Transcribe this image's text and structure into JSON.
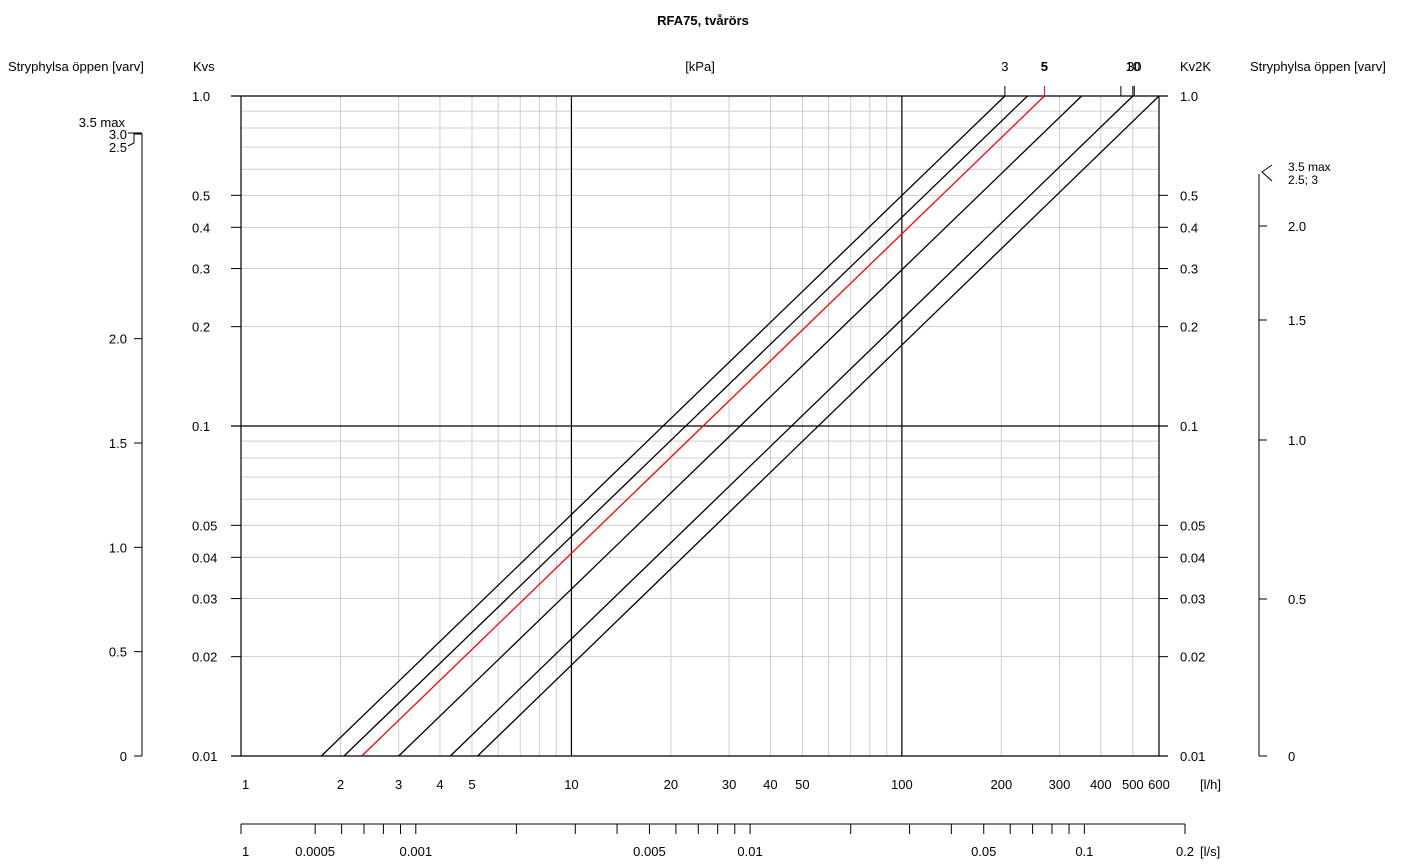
{
  "chart_data": {
    "type": "line",
    "title": "RFA75, tvårörs",
    "colors": {
      "highlight": "#ff0000",
      "line": "#000000",
      "minor_grid": "#cfcfcf",
      "major_grid": "#000000"
    },
    "grid": true,
    "x_scale": "log",
    "y_scale": "log",
    "xlim": [
      1,
      600
    ],
    "ylim": [
      0.01,
      1.0
    ],
    "x_unit_label": "[l/h]",
    "x_ticks": [
      "1",
      "2",
      "3",
      "4",
      "5",
      "10",
      "20",
      "30",
      "40",
      "50",
      "100",
      "200",
      "300",
      "400",
      "500",
      "600"
    ],
    "x2_unit_label": "[l/s]",
    "x2_ticks": [
      "1",
      "0.0005",
      "0.001",
      "0.005",
      "0.01",
      "0.05",
      "0.1",
      "0.2"
    ],
    "left_axis_label": "Kvs",
    "center_label": "[kPa]",
    "right_axis_label": "Kv2K",
    "y_ticks": [
      "0.01",
      "0.02",
      "0.03",
      "0.04",
      "0.05",
      "0.1",
      "0.2",
      "0.3",
      "0.4",
      "0.5",
      "1.0"
    ],
    "top_series_labels": [
      "3",
      "5",
      "10",
      "30"
    ],
    "top_series_bold": "5",
    "left_scale": {
      "label": "Stryphylsa öppen [varv]",
      "ticks": [
        "0",
        "0.5",
        "1.0",
        "1.5",
        "2.0",
        "2.5",
        "3.0",
        "3.5 max"
      ]
    },
    "right_scale": {
      "label": "Stryphylsa öppen [varv]",
      "ticks": [
        "0",
        "0.5",
        "1.0",
        "1.5",
        "2.0",
        "2.5; 3",
        "3.5 max"
      ]
    },
    "series": [
      {
        "label": "3",
        "highlight": false,
        "points": [
          [
            1.75,
            0.01
          ],
          [
            205,
            1.0
          ]
        ]
      },
      {
        "label": "",
        "highlight": false,
        "points": [
          [
            2.05,
            0.01
          ],
          [
            240,
            1.0
          ]
        ]
      },
      {
        "label": "5",
        "highlight": true,
        "points": [
          [
            2.32,
            0.01
          ],
          [
            270,
            1.0
          ]
        ]
      },
      {
        "label": "",
        "highlight": false,
        "points": [
          [
            3.0,
            0.01
          ],
          [
            350,
            1.0
          ]
        ]
      },
      {
        "label": "10",
        "highlight": false,
        "points": [
          [
            4.3,
            0.01
          ],
          [
            500,
            1.0
          ]
        ]
      },
      {
        "label": "",
        "highlight": false,
        "points": [
          [
            5.2,
            0.01
          ],
          [
            600,
            1.0
          ]
        ]
      }
    ]
  }
}
